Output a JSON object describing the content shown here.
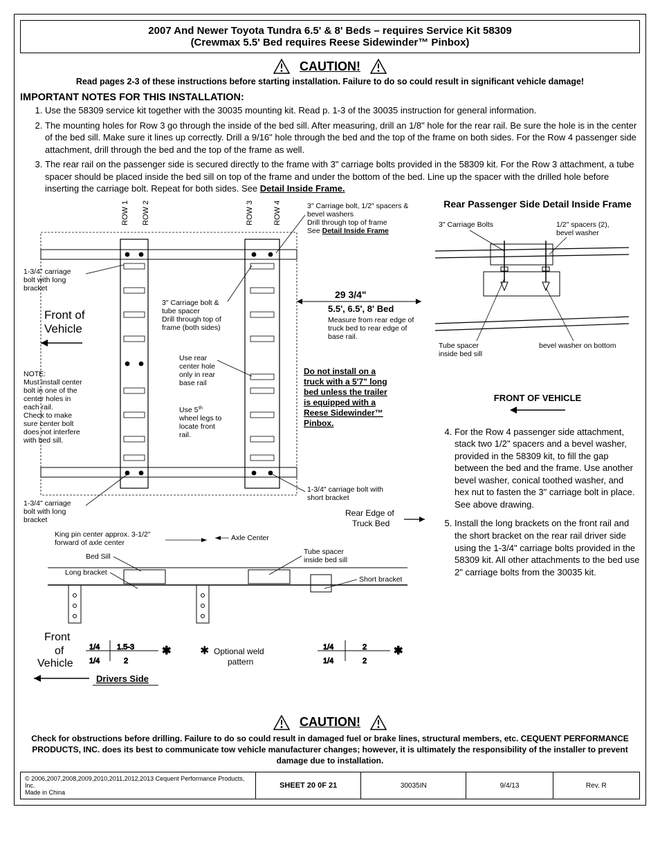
{
  "title": {
    "line1": "2007 And Newer Toyota Tundra 6.5' & 8' Beds – requires Service Kit 58309",
    "line2": "(Crewmax 5.5' Bed requires Reese Sidewinder™ Pinbox)"
  },
  "caution1": {
    "label": "CAUTION!",
    "text": "Read pages 2-3 of these instructions before starting installation. Failure to do so could result in significant vehicle damage!"
  },
  "importantHeading": "IMPORTANT NOTES FOR THIS INSTALLATION:",
  "notes": [
    "Use the 58309 service kit together with the 30035 mounting kit.  Read p. 1-3 of the 30035 instruction for general information.",
    "The mounting holes for Row 3 go through the inside of the bed sill. After measuring, drill an 1/8\" hole for the rear rail. Be sure the hole is in the center of the bed sill. Make sure it lines up correctly.  Drill a 9/16\" hole through the bed and the top of the frame on both sides.  For the Row 4 passenger side attachment, drill through the bed and the top of the frame as well.",
    "The rear rail on the passenger side is secured directly to the frame with 3\" carriage bolts provided in the 58309 kit. For the Row 3 attachment, a tube spacer should be placed inside the bed sill on top of the frame and under the bottom of the bed.  Line up the spacer with the drilled hole before inserting the carriage bolt.  Repeat for both sides. See "
  ],
  "detailFrameLink": "Detail Inside Frame.",
  "diagram": {
    "rows": [
      "ROW 1",
      "ROW 2",
      "ROW 3",
      "ROW 4"
    ],
    "frontOfVehicle": "Front of Vehicle",
    "carriageBoltLong": "1-3/4\" carriage bolt with long bracket",
    "carriageBolt3": "3\" Carriage bolt & tube spacer\nDrill through top of frame (both sides)",
    "carriageBoltTop": "3\" Carriage bolt, 1/2\" spacers & bevel washers\nDrill through top of frame\nSee ",
    "carriageBoltTopLink": "Detail Inside Frame",
    "noteCenter": "NOTE:\nMust install center bolt in one of the center holes in each rail.\nCheck to make sure center bolt does not interfere with  bed sill.",
    "useRearCenter": "Use rear center hole only in rear base rail",
    "use5thWheel": "Use 5th wheel legs to locate front rail.",
    "measurement": "29 3/4\"",
    "bedSizes": "5.5', 6.5', 8' Bed",
    "measureNote": "Measure from rear edge of truck bed to rear edge of base rail.",
    "sidewinderWarn": "Do not install on a truck with a 5'7\" long bed unless the trailer is equipped with a Reese Sidewinder™ Pinbox.",
    "shortBracket": "1-3/4\" carriage bolt with short bracket",
    "rearEdge": "Rear Edge of Truck Bed",
    "kingPin": "King pin center approx. 3-1/2\" forward of axle center",
    "axleCenter": "Axle Center",
    "bedSill": "Bed Sill",
    "tubeSpacer": "Tube spacer inside bed sill",
    "longBracket": "Long bracket",
    "shortBracketLabel": "Short bracket",
    "frontOfVehicle2": "Front of Vehicle",
    "optionalWeld": "Optional weld pattern",
    "driversSide": "Drivers Side",
    "weldNums": {
      "a": "1/4",
      "b": "1.5-3",
      "c": "2",
      "d": "1/4",
      "e": "2"
    }
  },
  "rightDetail": {
    "heading": "Rear Passenger Side Detail Inside Frame",
    "carriageBolts": "3\" Carriage Bolts",
    "spacers": "1/2\" spacers (2), bevel washer",
    "tubeSpacer": "Tube spacer inside bed sill",
    "bevelBottom": "bevel washer on bottom",
    "frontOfVehicle": "FRONT OF VEHICLE"
  },
  "rightNotes": [
    "For the Row 4 passenger side attachment, stack two 1/2\" spacers and a bevel washer, provided in the 58309 kit, to fill the gap between the bed and the frame. Use another bevel washer, conical toothed washer, and hex nut to fasten the 3\" carriage bolt in place. See above drawing.",
    "Install the long brackets on the front rail and the short bracket on the rear rail driver side using the 1-3/4\" carriage bolts provided in the 58309 kit.  All other attachments to the bed use 2\" carriage bolts from the 30035 kit."
  ],
  "caution2": {
    "label": "CAUTION!",
    "text": "Check for obstructions before drilling. Failure to do so could result in damaged fuel or brake lines, structural members, etc. CEQUENT PERFORMANCE PRODUCTS, INC. does its best to communicate tow vehicle manufacturer changes; however, it is ultimately the responsibility of the installer to prevent damage due to installation."
  },
  "footer": {
    "copyright": "© 2006,2007,2008,2009,2010,2011,2012,2013 Cequent Performance Products, Inc.\nMade in China",
    "sheet": "SHEET 20 0F 21",
    "partNum": "30035IN",
    "date": "9/4/13",
    "rev": "Rev. R"
  },
  "colors": {
    "text": "#000000",
    "bg": "#ffffff",
    "line": "#000000"
  }
}
